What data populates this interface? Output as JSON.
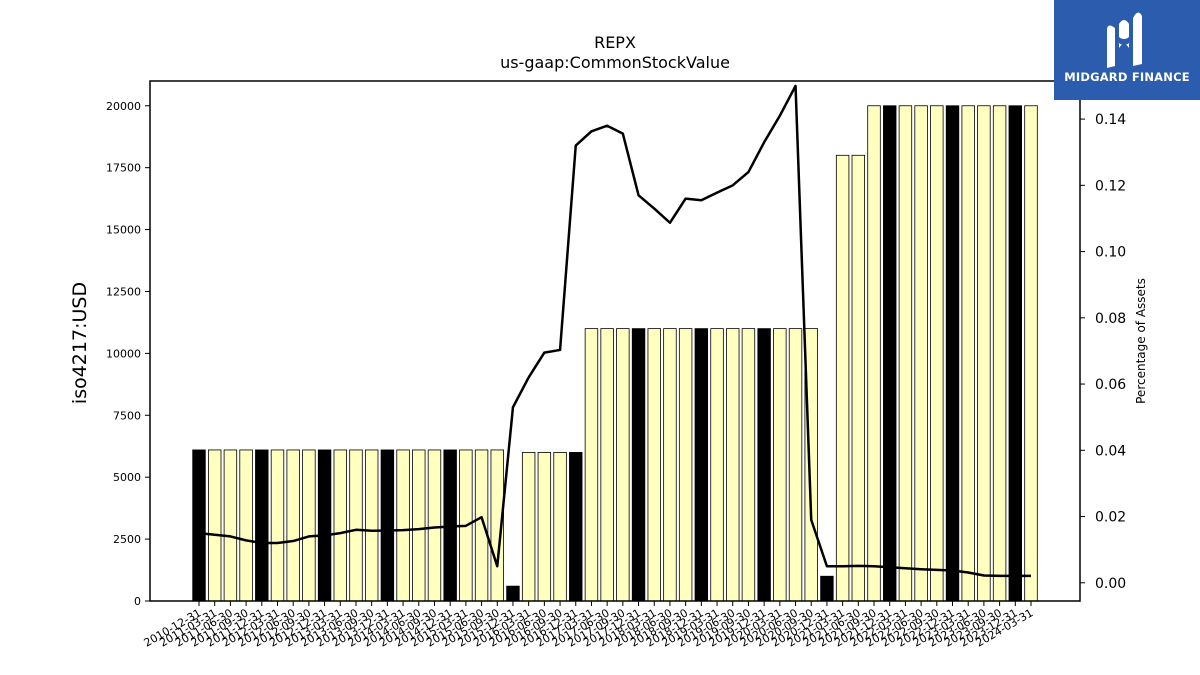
{
  "chart_data": {
    "type": "bar+line",
    "title": "REPX",
    "subtitle": "us-gaap:CommonStockValue",
    "ylabel": "iso4217:USD",
    "y2label": "Percentage of Assets",
    "ylim": [
      0,
      21000
    ],
    "y2lim": [
      -0.0055,
      0.1515
    ],
    "yticks": [
      0,
      2500,
      5000,
      7500,
      10000,
      12500,
      15000,
      17500,
      20000
    ],
    "y2ticks": [
      "0.00",
      "0.02",
      "0.04",
      "0.06",
      "0.08",
      "0.10",
      "0.12",
      "0.14"
    ],
    "colors": {
      "bar_light": "#ffffc0",
      "bar_dark": "#000000",
      "line": "#000000"
    },
    "categories": [
      "2010-12-31",
      "2011-03-31",
      "2011-06-30",
      "2011-09-30",
      "2011-12-31",
      "2012-03-31",
      "2012-06-30",
      "2012-09-30",
      "2012-12-31",
      "2013-03-31",
      "2013-06-30",
      "2013-09-30",
      "2013-12-31",
      "2014-03-31",
      "2014-06-30",
      "2014-09-30",
      "2014-12-31",
      "2015-03-31",
      "2015-06-30",
      "2015-09-30",
      "2015-12-31",
      "2016-03-31",
      "2016-06-30",
      "2016-09-30",
      "2016-12-31",
      "2017-03-31",
      "2017-06-30",
      "2017-09-30",
      "2017-12-31",
      "2018-03-31",
      "2018-06-30",
      "2018-09-30",
      "2018-12-31",
      "2019-03-31",
      "2019-06-30",
      "2019-09-30",
      "2019-12-31",
      "2020-03-31",
      "2020-06-30",
      "2020-09-30",
      "2020-12-31",
      "2021-03-31",
      "2021-06-30",
      "2021-09-30",
      "2021-12-31",
      "2022-03-31",
      "2022-06-30",
      "2022-09-30",
      "2022-12-31",
      "2023-03-31",
      "2023-06-30",
      "2023-09-30",
      "2023-12-31",
      "2024-03-31"
    ],
    "bar_series": {
      "name": "CommonStockValue",
      "values": [
        6100,
        6100,
        6100,
        6100,
        6100,
        6100,
        6100,
        6100,
        6100,
        6100,
        6100,
        6100,
        6100,
        6100,
        6100,
        6100,
        6100,
        6100,
        6100,
        6100,
        600,
        6000,
        6000,
        6000,
        6000,
        11000,
        11000,
        11000,
        11000,
        11000,
        11000,
        11000,
        11000,
        11000,
        11000,
        11000,
        11000,
        11000,
        11000,
        11000,
        1000,
        18000,
        18000,
        20000,
        20000,
        20000,
        20000,
        20000,
        20000,
        20000,
        20000,
        20000,
        20000,
        20000
      ],
      "dark": [
        true,
        false,
        false,
        false,
        true,
        false,
        false,
        false,
        true,
        false,
        false,
        false,
        true,
        false,
        false,
        false,
        true,
        false,
        false,
        false,
        true,
        false,
        false,
        false,
        true,
        false,
        false,
        false,
        true,
        false,
        false,
        false,
        true,
        false,
        false,
        false,
        true,
        false,
        false,
        false,
        true,
        false,
        false,
        false,
        true,
        false,
        false,
        false,
        true,
        false,
        false,
        false,
        true,
        false
      ]
    },
    "line_series": {
      "name": "Percentage of Assets",
      "values": [
        0.015,
        0.0145,
        0.014,
        0.0128,
        0.012,
        0.012,
        0.0126,
        0.014,
        0.0143,
        0.015,
        0.016,
        0.0157,
        0.0158,
        0.0159,
        0.0162,
        0.0167,
        0.017,
        0.0172,
        0.0198,
        0.005,
        0.053,
        0.062,
        0.0695,
        0.0703,
        0.132,
        0.1363,
        0.138,
        0.1356,
        0.117,
        0.113,
        0.1087,
        0.116,
        0.1155,
        0.1178,
        0.12,
        0.124,
        0.133,
        0.141,
        0.15,
        0.019,
        0.005,
        0.005,
        0.0051,
        0.005,
        0.0047,
        0.0044,
        0.0041,
        0.0039,
        0.0037,
        0.0031,
        0.0022,
        0.0021,
        0.0021,
        0.0021
      ]
    }
  },
  "logo": {
    "text": "MIDGARD FINANCE"
  }
}
